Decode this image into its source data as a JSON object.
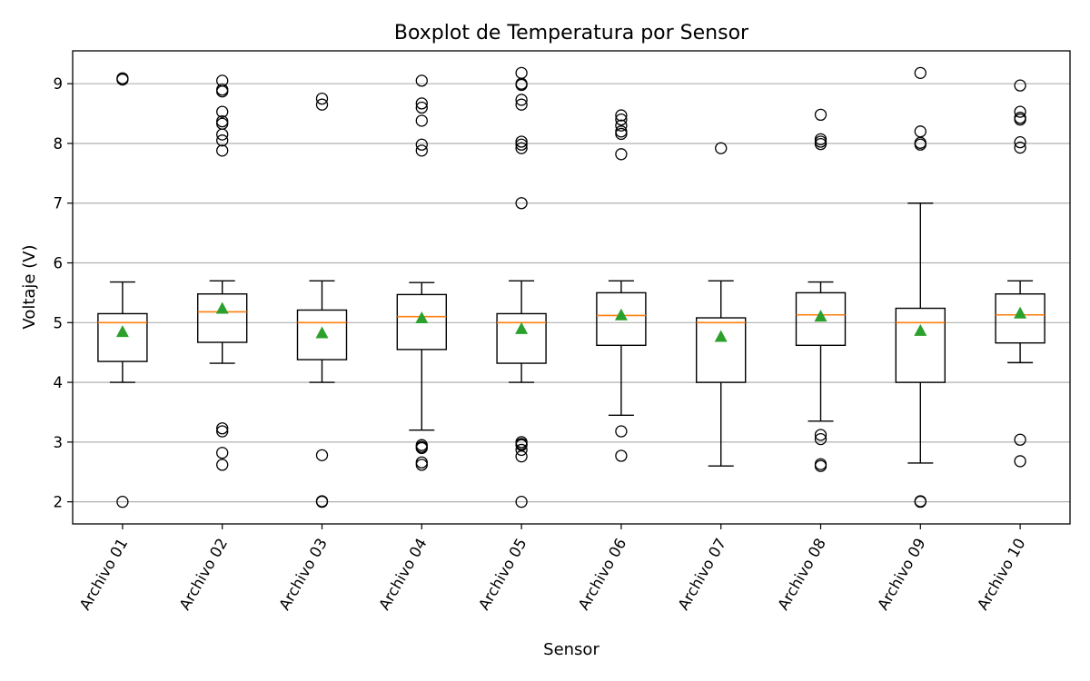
{
  "chart_data": {
    "type": "boxplot",
    "title": "Boxplot de Temperatura por Sensor",
    "xlabel": "Sensor",
    "ylabel": "Voltaje (V)",
    "ylim": [
      1.63,
      9.55
    ],
    "yticks": [
      2,
      3,
      4,
      5,
      6,
      7,
      8,
      9
    ],
    "grid": "horizontal",
    "colors": {
      "box": "#000000",
      "median": "#ff7f0e",
      "mean": "#2ca02c",
      "grid": "#b0b0b0"
    },
    "categories": [
      "Archivo 01",
      "Archivo 02",
      "Archivo 03",
      "Archivo 04",
      "Archivo 05",
      "Archivo 06",
      "Archivo 07",
      "Archivo 08",
      "Archivo 09",
      "Archivo 10"
    ],
    "boxes": [
      {
        "whislo": 4.0,
        "q1": 4.35,
        "med": 5.0,
        "q3": 5.15,
        "whishi": 5.68,
        "mean": 4.85,
        "fliers": [
          9.07,
          9.09,
          2.0
        ]
      },
      {
        "whislo": 4.32,
        "q1": 4.67,
        "med": 5.18,
        "q3": 5.48,
        "whishi": 5.7,
        "mean": 5.24,
        "fliers": [
          9.05,
          8.9,
          8.87,
          8.53,
          8.37,
          8.33,
          8.15,
          8.05,
          7.88,
          3.23,
          3.18,
          2.82,
          2.62
        ]
      },
      {
        "whislo": 4.0,
        "q1": 4.38,
        "med": 5.0,
        "q3": 5.21,
        "whishi": 5.7,
        "mean": 4.83,
        "fliers": [
          8.75,
          8.65,
          2.78,
          2.0,
          2.01
        ]
      },
      {
        "whislo": 3.2,
        "q1": 4.55,
        "med": 5.1,
        "q3": 5.47,
        "whishi": 5.67,
        "mean": 5.08,
        "fliers": [
          9.05,
          8.67,
          8.6,
          8.38,
          7.98,
          7.88,
          2.95,
          2.92,
          2.9,
          2.66,
          2.62
        ]
      },
      {
        "whislo": 4.0,
        "q1": 4.32,
        "med": 5.0,
        "q3": 5.15,
        "whishi": 5.7,
        "mean": 4.9,
        "fliers": [
          9.18,
          9.0,
          8.98,
          8.73,
          8.65,
          8.03,
          7.98,
          7.92,
          7.0,
          3.0,
          2.97,
          2.95,
          2.87,
          2.76,
          2.0
        ]
      },
      {
        "whislo": 3.45,
        "q1": 4.62,
        "med": 5.12,
        "q3": 5.5,
        "whishi": 5.7,
        "mean": 5.13,
        "fliers": [
          8.47,
          8.4,
          8.3,
          8.2,
          8.16,
          7.82,
          3.18,
          2.77
        ]
      },
      {
        "whislo": 2.6,
        "q1": 4.0,
        "med": 5.0,
        "q3": 5.08,
        "whishi": 5.7,
        "mean": 4.77,
        "fliers": [
          7.92
        ]
      },
      {
        "whislo": 3.35,
        "q1": 4.62,
        "med": 5.13,
        "q3": 5.5,
        "whishi": 5.68,
        "mean": 5.11,
        "fliers": [
          8.48,
          8.07,
          8.03,
          7.99,
          3.12,
          3.05,
          2.63,
          2.6
        ]
      },
      {
        "whislo": 2.65,
        "q1": 4.0,
        "med": 5.0,
        "q3": 5.24,
        "whishi": 7.0,
        "mean": 4.87,
        "fliers": [
          9.18,
          8.2,
          8.01,
          7.98,
          2.0,
          2.01
        ]
      },
      {
        "whislo": 4.33,
        "q1": 4.66,
        "med": 5.13,
        "q3": 5.48,
        "whishi": 5.7,
        "mean": 5.16,
        "fliers": [
          8.97,
          8.53,
          8.43,
          8.4,
          8.02,
          7.93,
          3.04,
          2.68
        ]
      }
    ]
  }
}
